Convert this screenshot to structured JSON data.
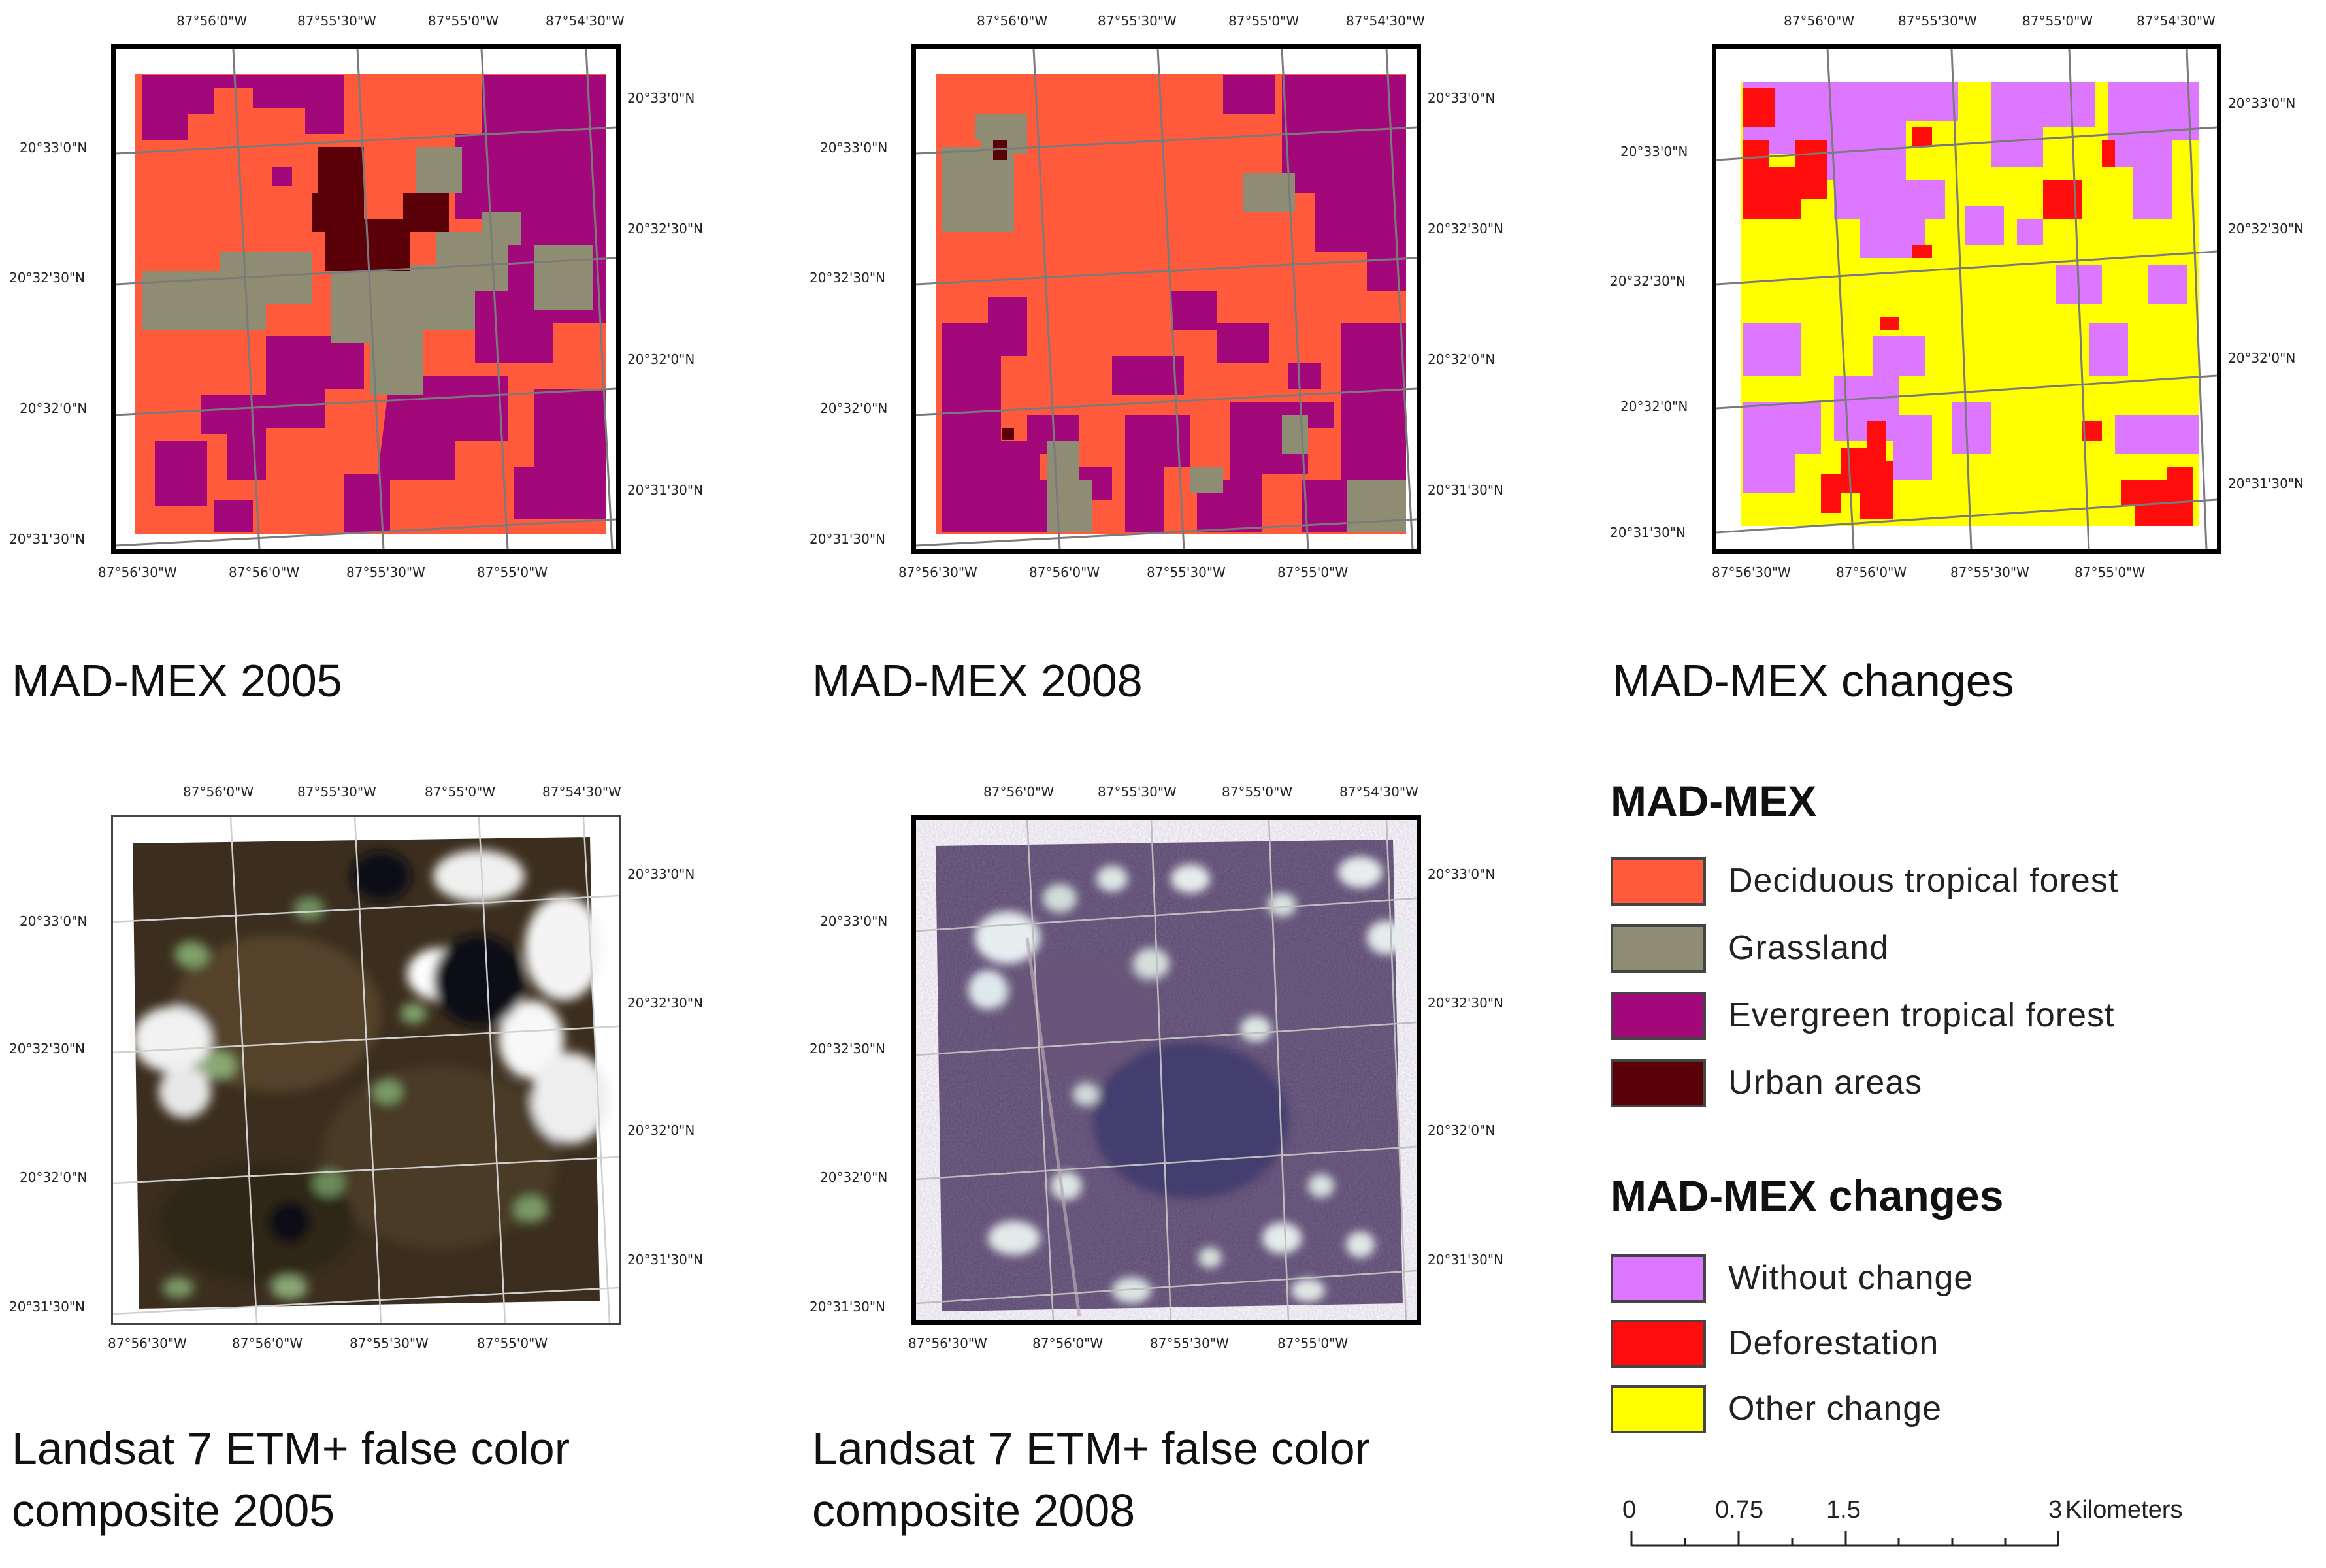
{
  "panels": {
    "madmex2005": {
      "caption": "MAD-MEX 2005",
      "top_labels": [
        "87°56'0\"W",
        "87°55'30\"W",
        "87°55'0\"W",
        "87°54'30\"W"
      ],
      "bottom_labels": [
        "87°56'30\"W",
        "87°56'0\"W",
        "87°55'30\"W",
        "87°55'0\"W"
      ],
      "left_labels": [
        "20°33'0\"N",
        "20°32'30\"N",
        "20°32'0\"N",
        "20°31'30\"N"
      ],
      "right_labels": [
        "20°33'0\"N",
        "20°32'30\"N",
        "20°32'0\"N",
        "20°31'30\"N"
      ]
    },
    "madmex2008": {
      "caption": "MAD-MEX 2008",
      "top_labels": [
        "87°56'0\"W",
        "87°55'30\"W",
        "87°55'0\"W",
        "87°54'30\"W"
      ],
      "bottom_labels": [
        "87°56'30\"W",
        "87°56'0\"W",
        "87°55'30\"W",
        "87°55'0\"W"
      ],
      "left_labels": [
        "20°33'0\"N",
        "20°32'30\"N",
        "20°32'0\"N",
        "20°31'30\"N"
      ],
      "right_labels": [
        "20°33'0\"N",
        "20°32'30\"N",
        "20°32'0\"N",
        "20°31'30\"N"
      ]
    },
    "changes": {
      "caption": "MAD-MEX changes",
      "top_labels": [
        "87°56'0\"W",
        "87°55'30\"W",
        "87°55'0\"W",
        "87°54'30\"W"
      ],
      "bottom_labels": [
        "87°56'30\"W",
        "87°56'0\"W",
        "87°55'30\"W",
        "87°55'0\"W"
      ],
      "left_labels": [
        "20°33'0\"N",
        "20°32'30\"N",
        "20°32'0\"N",
        "20°31'30\"N"
      ],
      "right_labels": [
        "20°33'0\"N",
        "20°32'30\"N",
        "20°32'0\"N",
        "20°31'30\"N"
      ]
    },
    "landsat2005": {
      "caption": "Landsat 7 ETM+ false color composite 2005",
      "top_labels": [
        "87°56'0\"W",
        "87°55'30\"W",
        "87°55'0\"W",
        "87°54'30\"W"
      ],
      "bottom_labels": [
        "87°56'30\"W",
        "87°56'0\"W",
        "87°55'30\"W",
        "87°55'0\"W"
      ],
      "left_labels": [
        "20°33'0\"N",
        "20°32'30\"N",
        "20°32'0\"N",
        "20°31'30\"N"
      ],
      "right_labels": [
        "20°33'0\"N",
        "20°32'30\"N",
        "20°32'0\"N",
        "20°31'30\"N"
      ]
    },
    "landsat2008": {
      "caption": "Landsat 7 ETM+ false color composite 2008",
      "top_labels": [
        "87°56'0\"W",
        "87°55'30\"W",
        "87°55'0\"W",
        "87°54'30\"W"
      ],
      "bottom_labels": [
        "87°56'30\"W",
        "87°56'0\"W",
        "87°55'30\"W",
        "87°55'0\"W"
      ],
      "left_labels": [
        "20°33'0\"N",
        "20°32'30\"N",
        "20°32'0\"N",
        "20°31'30\"N"
      ],
      "right_labels": [
        "20°33'0\"N",
        "20°32'30\"N",
        "20°32'0\"N",
        "20°31'30\"N"
      ]
    }
  },
  "legend": {
    "madmex_title": "MAD-MEX",
    "madmex_items": [
      {
        "label": "Deciduous tropical forest",
        "color": "#ff5a3c"
      },
      {
        "label": "Grassland",
        "color": "#8e8c72"
      },
      {
        "label": "Evergreen tropical forest",
        "color": "#a3087a"
      },
      {
        "label": "Urban areas",
        "color": "#5a0008"
      }
    ],
    "changes_title": "MAD-MEX changes",
    "changes_items": [
      {
        "label": "Without change",
        "color": "#dd77ff"
      },
      {
        "label": "Deforestation",
        "color": "#ff0d0d"
      },
      {
        "label": "Other change",
        "color": "#ffff00"
      }
    ]
  },
  "scalebar": {
    "labels": [
      "0",
      "0.75",
      "1.5",
      "3"
    ],
    "unit": "Kilometers"
  }
}
